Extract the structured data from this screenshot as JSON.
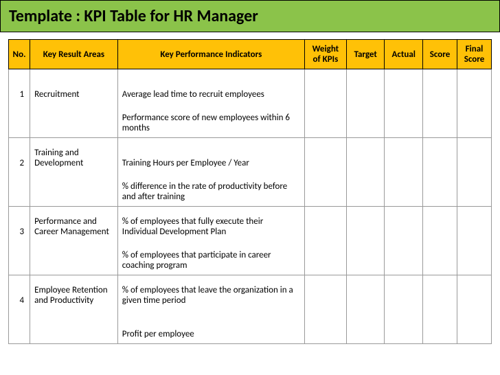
{
  "title": "Template : KPI Table for HR Manager",
  "columns": {
    "no": "No.",
    "kra": "Key Result Areas",
    "kpi": "Key Performance Indicators",
    "weight": "Weight of KPIs",
    "target": "Target",
    "actual": "Actual",
    "score": "Score",
    "final": "Final Score"
  },
  "rows": [
    {
      "no": "1",
      "kra": "Recruitment",
      "kpi": "Average lead time to recruit employees",
      "sectionEnd": false
    },
    {
      "no": "",
      "kra": "",
      "kpi": "Performance score of new employees within 6 months",
      "sectionEnd": true
    },
    {
      "no": "2",
      "kra": "Training and Development",
      "kpi": "Training Hours per Employee / Year",
      "sectionEnd": false
    },
    {
      "no": "",
      "kra": "",
      "kpi": "% difference in the rate of productivity before and after training",
      "sectionEnd": true
    },
    {
      "no": "3",
      "kra": "Performance and Career Management",
      "kpi": "% of employees that fully execute their Individual Development Plan",
      "sectionEnd": false
    },
    {
      "no": "",
      "kra": "",
      "kpi": "% of employees that participate in career coaching program",
      "sectionEnd": true
    },
    {
      "no": "4",
      "kra": "Employee Retention and Productivity",
      "kpi": "% of employees that leave the organization in a given time period",
      "sectionEnd": false
    },
    {
      "no": "",
      "kra": "",
      "kpi": "Profit per employee",
      "sectionEnd": true
    }
  ],
  "colors": {
    "titleBg": "#8bc34a",
    "headerBg": "#ffc107",
    "border": "#999999",
    "text": "#000000"
  }
}
